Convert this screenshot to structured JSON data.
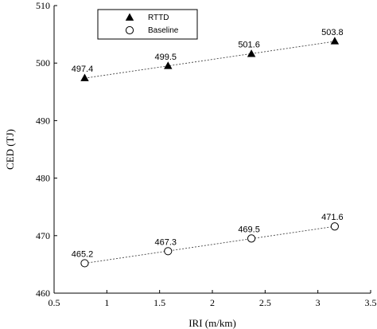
{
  "chart_data": {
    "type": "scatter",
    "title": "",
    "xlabel": "IRI (m/km)",
    "ylabel": "CED (TJ)",
    "xlim": [
      0.5,
      3.5
    ],
    "ylim": [
      460,
      510
    ],
    "xticks": [
      0.5,
      1,
      1.5,
      2,
      2.5,
      3,
      3.5
    ],
    "xtick_labels": [
      "0.5",
      "1",
      "1.5",
      "2",
      "2.5",
      "3",
      "3.5"
    ],
    "yticks": [
      460,
      470,
      480,
      490,
      500,
      510
    ],
    "ytick_labels": [
      "460",
      "470",
      "480",
      "490",
      "500",
      "510"
    ],
    "grid": false,
    "legend_position": "top-left",
    "series": [
      {
        "name": "RTTD",
        "marker": "filled-triangle",
        "color": "#000000",
        "x": [
          0.79,
          1.58,
          2.37,
          3.16
        ],
        "y": [
          497.4,
          499.5,
          501.6,
          503.8
        ],
        "labels": [
          "497.4",
          "499.5",
          "501.6",
          "503.8"
        ]
      },
      {
        "name": "Baseline",
        "marker": "open-circle",
        "color": "#000000",
        "x": [
          0.79,
          1.58,
          2.37,
          3.16
        ],
        "y": [
          465.2,
          467.3,
          469.5,
          471.6
        ],
        "labels": [
          "465.2",
          "467.3",
          "469.5",
          "471.6"
        ]
      }
    ]
  }
}
